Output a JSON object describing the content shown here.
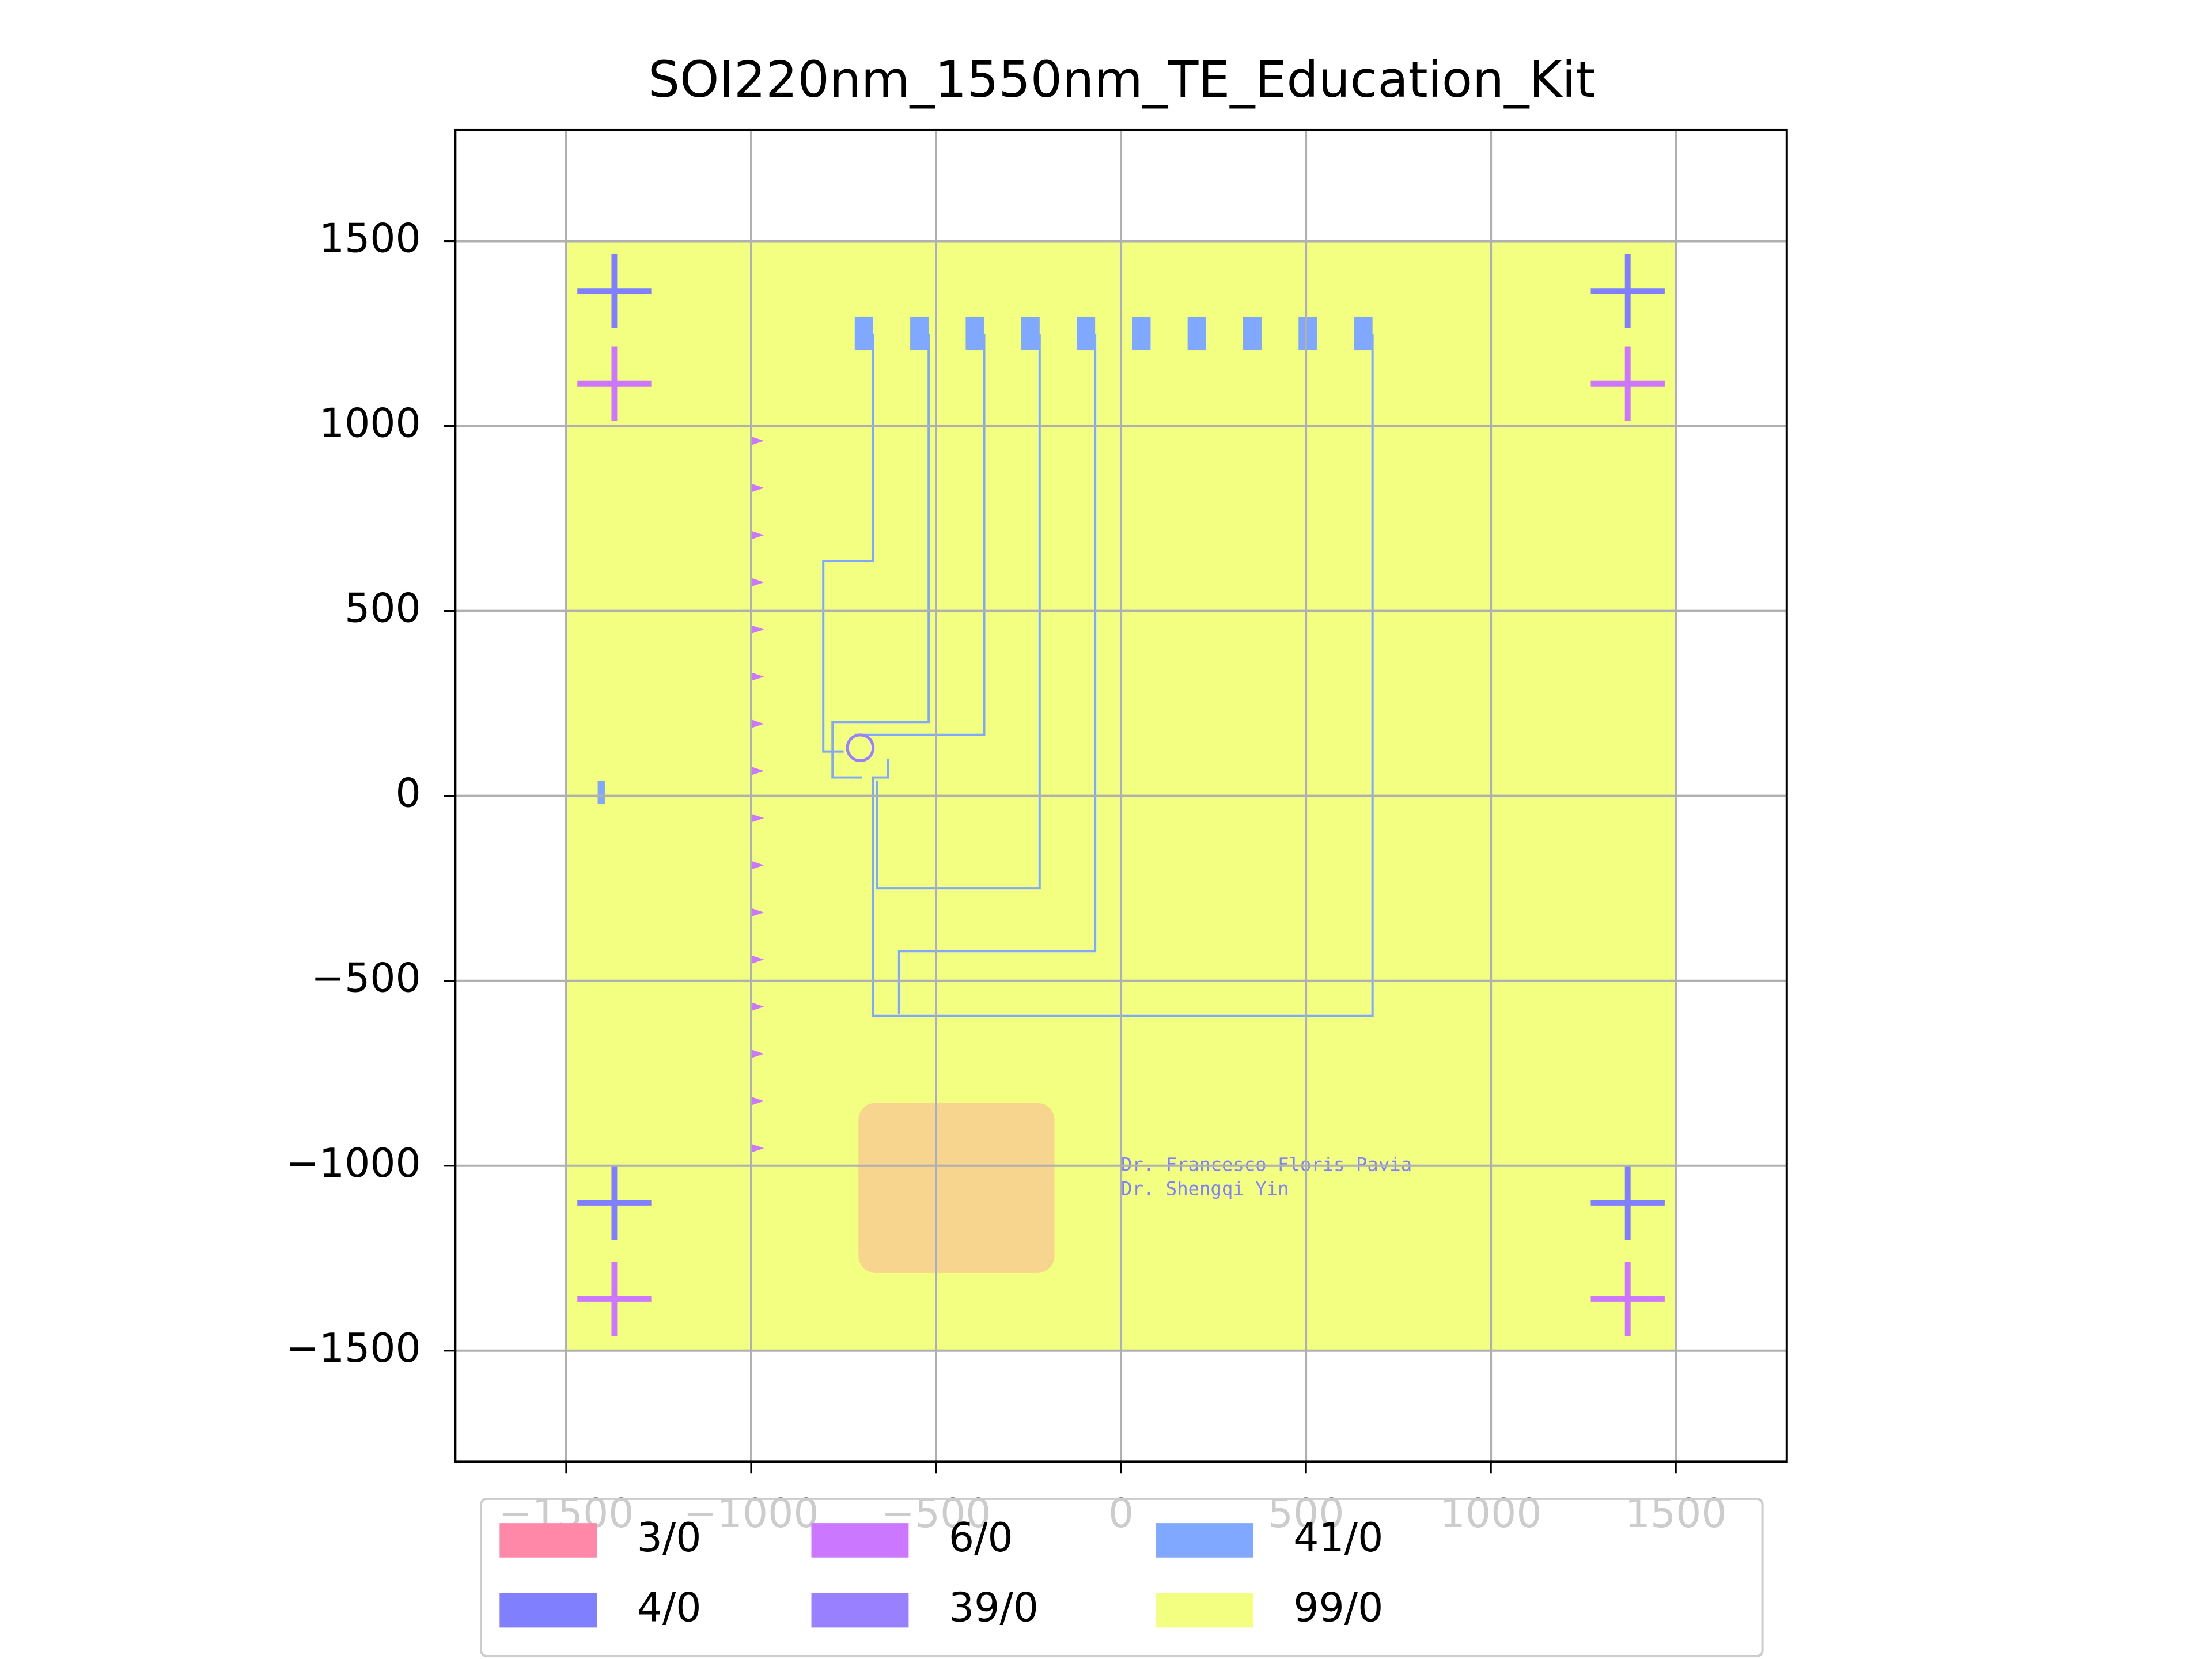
{
  "chart_data": {
    "type": "layout",
    "title": "SOI220nm_1550nm_TE_Education_Kit",
    "xlim": [
      -1800,
      1800
    ],
    "ylim": [
      -1800,
      1800
    ],
    "xticks": [
      {
        "value": -1500,
        "label": "−1500"
      },
      {
        "value": -1000,
        "label": "−1000"
      },
      {
        "value": -500,
        "label": "−500"
      },
      0,
      500,
      1000,
      1500
    ],
    "yticks": [
      {
        "value": -1500,
        "label": "−1500"
      },
      {
        "value": -1000,
        "label": "−1000"
      },
      {
        "value": -500,
        "label": "−500"
      },
      0,
      500,
      1000,
      1500
    ],
    "grid": true,
    "legend": "lower center",
    "series": [
      {
        "name": "3/0",
        "color": "#ff88a8"
      },
      {
        "name": "4/0",
        "color": "#8080ff"
      },
      {
        "name": "6/0",
        "color": "#cc77ff"
      },
      {
        "name": "39/0",
        "color": "#9980ff"
      },
      {
        "name": "41/0",
        "color": "#80a8ff"
      },
      {
        "name": "99/0",
        "color": "#f3ff80"
      }
    ],
    "annotations": [
      "Dr. Francesco Floris Pavia",
      "Dr. Shengqi Yin"
    ]
  }
}
